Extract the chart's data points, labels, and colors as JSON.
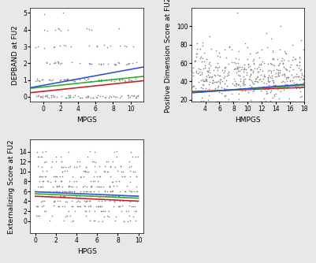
{
  "panel1": {
    "xlabel": "MPGS",
    "ylabel": "DEPBAND at FU2",
    "xlim": [
      -1.5,
      11.5
    ],
    "ylim": [
      -0.3,
      5.3
    ],
    "xticks": [
      0,
      2,
      4,
      6,
      8,
      10
    ],
    "yticks": [
      0,
      1,
      2,
      3,
      4,
      5
    ],
    "lines": [
      {
        "slope": 0.055,
        "intercept": 0.32,
        "color": "#cc2222"
      },
      {
        "slope": 0.055,
        "intercept": 0.58,
        "color": "#33aa33"
      },
      {
        "slope": 0.095,
        "intercept": 0.68,
        "color": "#3355cc"
      }
    ],
    "seed": 42,
    "n_points": 200,
    "y_levels": [
      0,
      1,
      2,
      3,
      4,
      5
    ],
    "y_weights": [
      0.38,
      0.3,
      0.16,
      0.1,
      0.04,
      0.02
    ]
  },
  "panel2": {
    "xlabel": "HMPGS",
    "ylabel": "Positive Dimension Score at FU2",
    "xlim": [
      2,
      18
    ],
    "ylim": [
      18,
      120
    ],
    "xticks": [
      4,
      6,
      8,
      10,
      12,
      14,
      16,
      18
    ],
    "yticks": [
      20,
      40,
      60,
      80,
      100
    ],
    "lines": [
      {
        "slope": 0.28,
        "intercept": 28.5,
        "color": "#cc2222"
      },
      {
        "slope": 0.5,
        "intercept": 27.0,
        "color": "#33aa33"
      },
      {
        "slope": 0.58,
        "intercept": 26.5,
        "color": "#3355cc"
      }
    ],
    "seed": 99,
    "n_points": 450
  },
  "panel3": {
    "xlabel": "HPGS",
    "ylabel": "Externalizing Score at FU2",
    "xlim": [
      -0.5,
      10.5
    ],
    "ylim": [
      -2.5,
      16.5
    ],
    "xticks": [
      0,
      2,
      4,
      6,
      8,
      10
    ],
    "yticks": [
      0,
      2,
      4,
      6,
      8,
      10,
      12,
      14
    ],
    "lines": [
      {
        "slope": -0.1,
        "intercept": 5.0,
        "color": "#cc2222"
      },
      {
        "slope": -0.09,
        "intercept": 5.5,
        "color": "#33aa33"
      },
      {
        "slope": -0.09,
        "intercept": 5.9,
        "color": "#3355cc"
      }
    ],
    "seed": 55,
    "n_points": 350,
    "y_levels": [
      0,
      1,
      2,
      3,
      4,
      5,
      6,
      7,
      8,
      9,
      10,
      11,
      12,
      13,
      14
    ],
    "y_weights": [
      0.03,
      0.05,
      0.06,
      0.07,
      0.08,
      0.09,
      0.1,
      0.1,
      0.09,
      0.08,
      0.08,
      0.07,
      0.05,
      0.03,
      0.02
    ]
  },
  "bg_color": "#e8e8e8",
  "axes_bg": "#ffffff",
  "scatter_color": "#888888",
  "tick_fontsize": 5.5,
  "label_fontsize": 6.5,
  "marker_size": 3,
  "line_width": 1.2
}
